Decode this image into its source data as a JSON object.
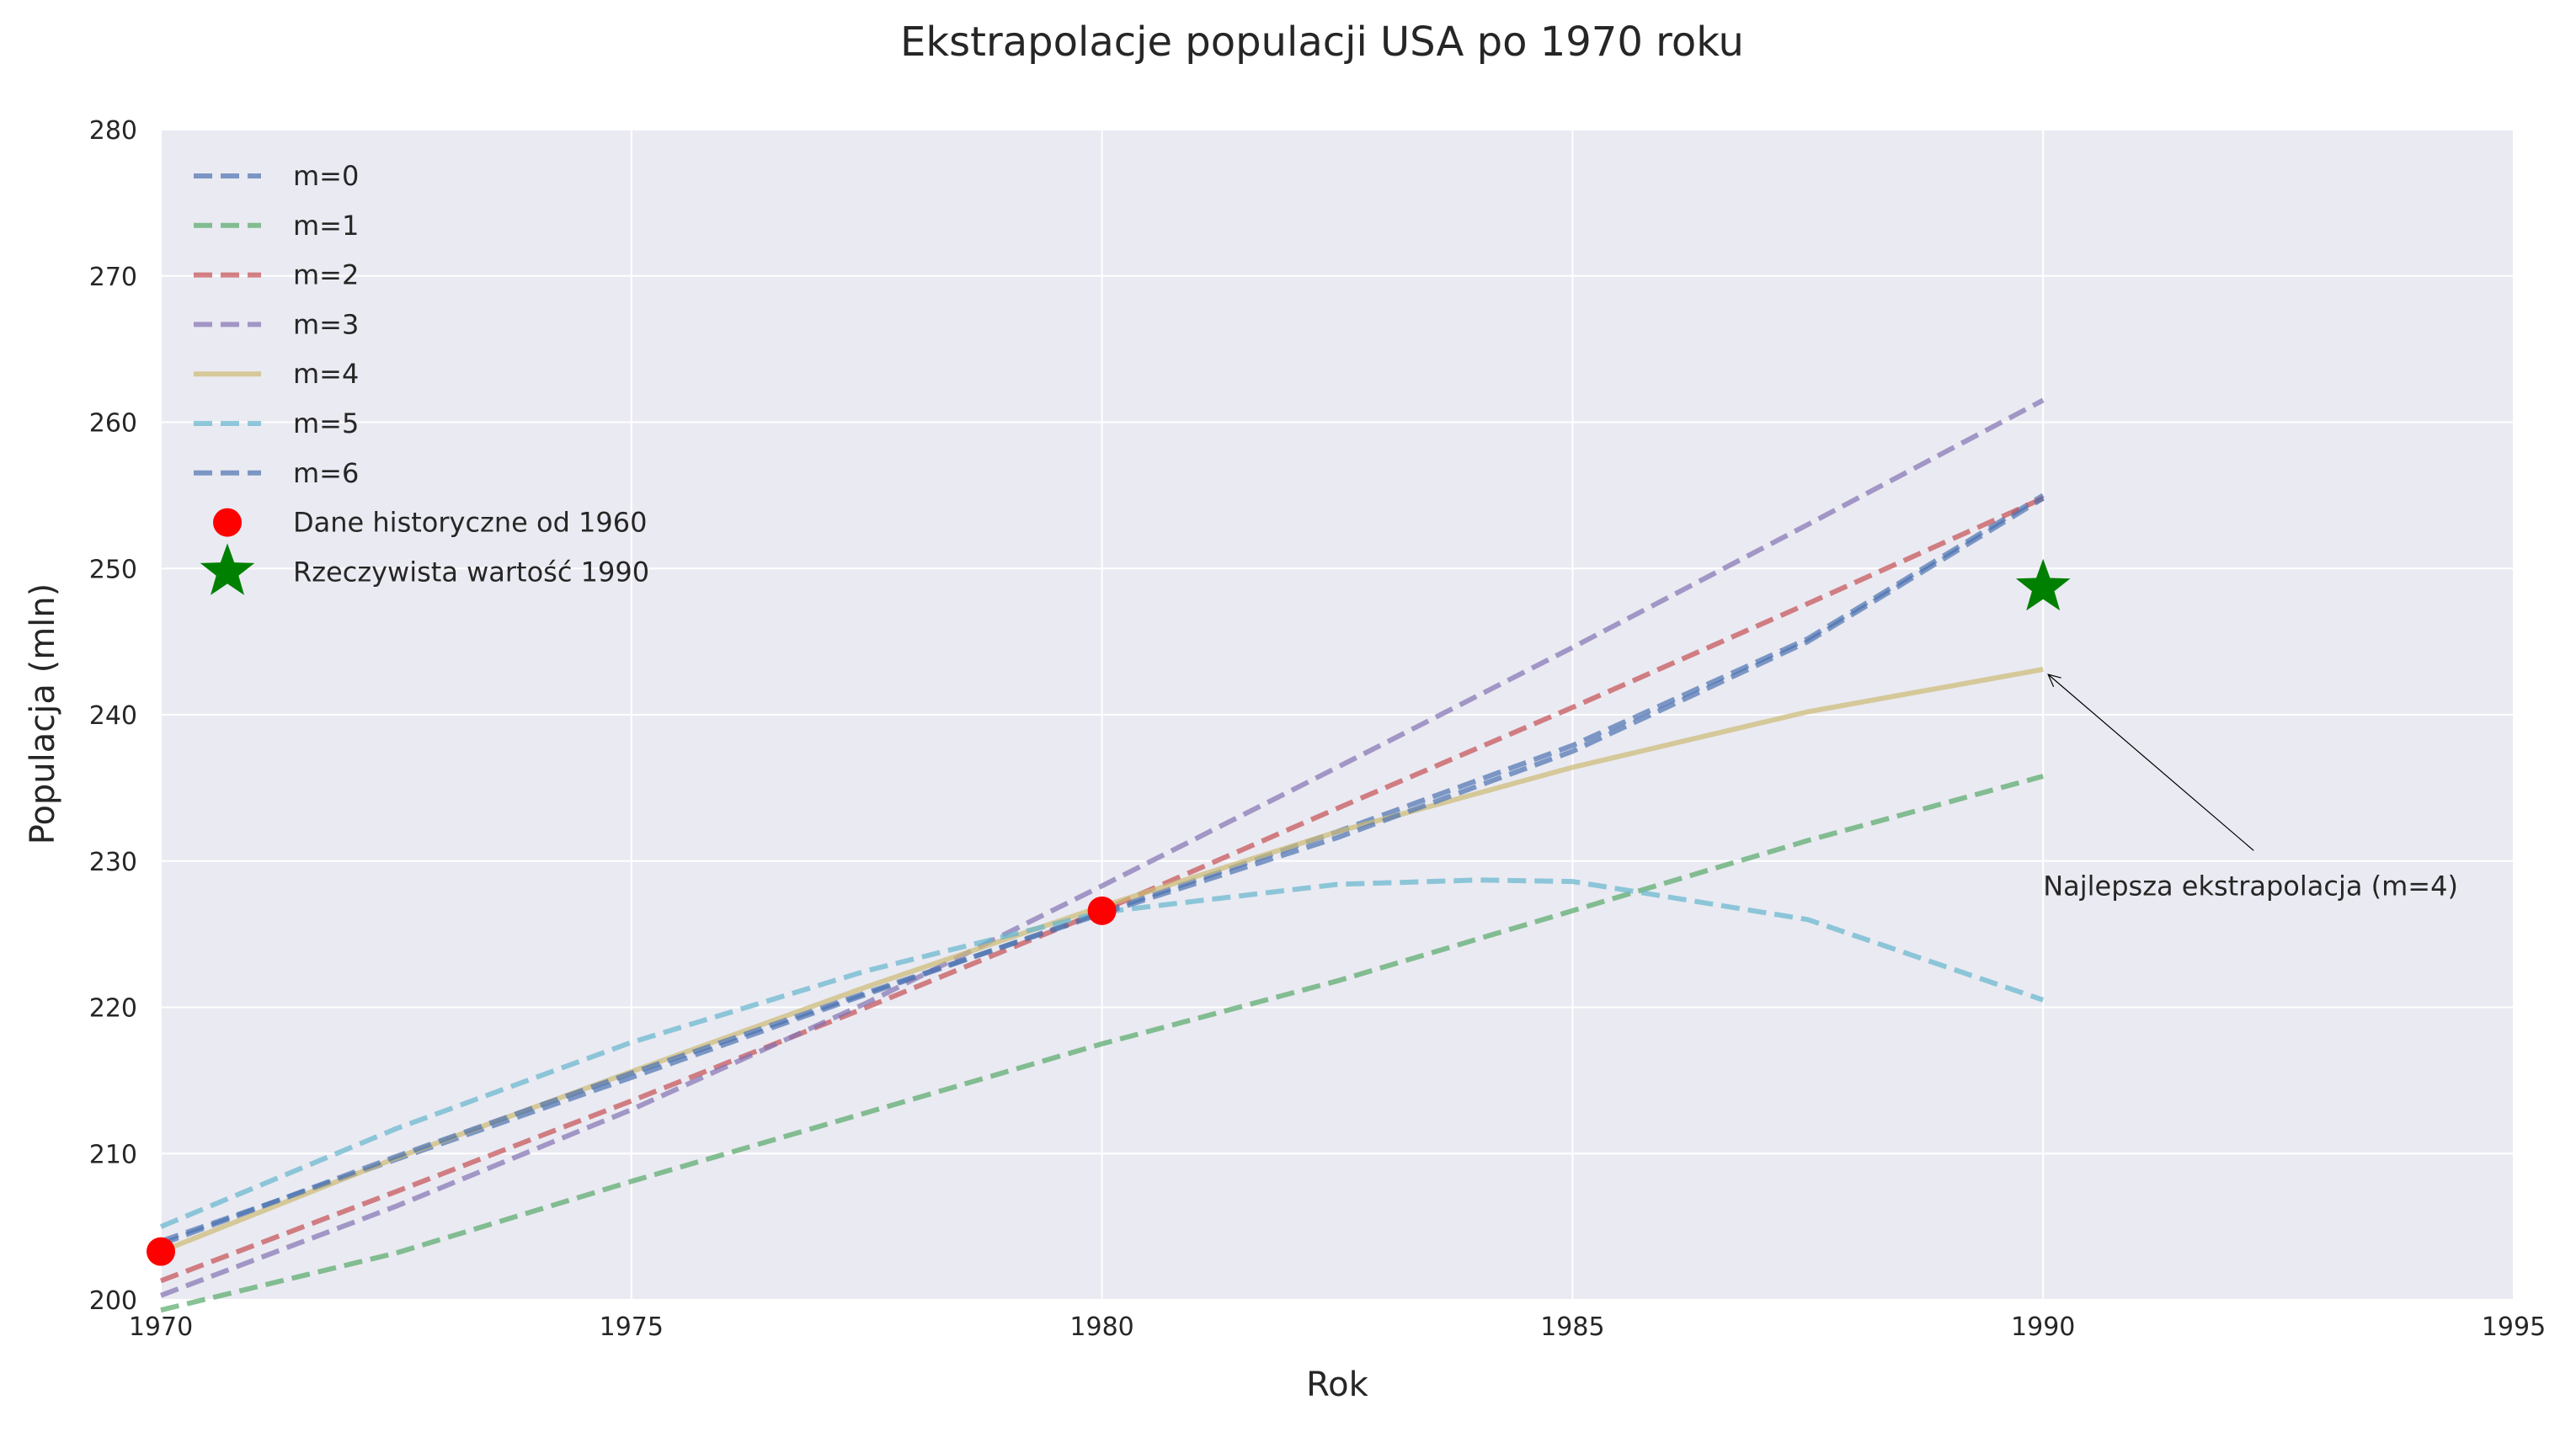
{
  "chart_data": {
    "type": "line",
    "title": "Ekstrapolacje populacji USA po 1970 roku",
    "xlabel": "Rok",
    "ylabel": "Populacja (mln)",
    "xlim": [
      1970,
      1995
    ],
    "ylim": [
      200,
      280
    ],
    "xticks": [
      "1970",
      "1975",
      "1980",
      "1985",
      "1990",
      "1995"
    ],
    "yticks": [
      "200",
      "210",
      "220",
      "230",
      "240",
      "250",
      "260",
      "270",
      "280"
    ],
    "grid": true,
    "legend_position": "top-left",
    "colors": {
      "background": "#eaeaf2",
      "grid": "#ffffff",
      "text": "#262626",
      "points": "#ff0000",
      "star": "#008000"
    },
    "series": [
      {
        "name": "m=0",
        "style": "dashed",
        "color": "#4c72b0",
        "x": [
          1970,
          1972.5,
          1975,
          1977.5,
          1980,
          1982.5,
          1985,
          1987.5,
          1990
        ],
        "y": [
          204.0,
          209.6,
          215.2,
          220.9,
          226.5,
          232.0,
          237.9,
          245.2,
          255.0
        ]
      },
      {
        "name": "m=1",
        "style": "dashed",
        "color": "#55a868",
        "x": [
          1970,
          1972.5,
          1975,
          1977.5,
          1980,
          1982.5,
          1985,
          1987.5,
          1990
        ],
        "y": [
          199.3,
          203.2,
          208.1,
          212.8,
          217.5,
          221.8,
          226.6,
          231.4,
          235.8
        ]
      },
      {
        "name": "m=2",
        "style": "dashed",
        "color": "#c44e52",
        "x": [
          1970,
          1972.5,
          1975,
          1977.5,
          1980,
          1982.5,
          1985,
          1987.5,
          1990
        ],
        "y": [
          201.3,
          207.4,
          213.6,
          220.0,
          226.6,
          233.6,
          240.5,
          247.6,
          254.8
        ]
      },
      {
        "name": "m=3",
        "style": "dashed",
        "color": "#8172b2",
        "x": [
          1970,
          1972.5,
          1975,
          1977.5,
          1980,
          1982.5,
          1985,
          1987.5,
          1990
        ],
        "y": [
          200.3,
          206.4,
          213.0,
          220.3,
          228.3,
          236.4,
          244.6,
          253.0,
          261.5
        ]
      },
      {
        "name": "m=4",
        "style": "solid",
        "color": "#ccb974",
        "x": [
          1970,
          1972.5,
          1975,
          1977.5,
          1980,
          1982.5,
          1985,
          1987.5,
          1990
        ],
        "y": [
          203.3,
          209.7,
          215.6,
          221.4,
          226.9,
          232.0,
          236.4,
          240.2,
          243.1
        ]
      },
      {
        "name": "m=5",
        "style": "dashed",
        "color": "#64b5cd",
        "x": [
          1970,
          1972.5,
          1975,
          1977.5,
          1980,
          1982.5,
          1984,
          1985,
          1987.5,
          1990
        ],
        "y": [
          205.0,
          211.7,
          217.6,
          222.5,
          226.5,
          228.4,
          228.7,
          228.6,
          226.0,
          220.5
        ]
      },
      {
        "name": "m=6",
        "style": "dashed",
        "color": "#4c72b0",
        "x": [
          1970,
          1972.5,
          1975,
          1977.5,
          1980,
          1982.5,
          1985,
          1987.5,
          1990
        ],
        "y": [
          203.8,
          209.8,
          215.5,
          221.0,
          226.4,
          231.6,
          237.5,
          245.0,
          254.8
        ]
      }
    ],
    "points": {
      "name": "Dane historyczne od 1960",
      "x": [
        1970,
        1980
      ],
      "y": [
        203.3,
        226.6
      ]
    },
    "star": {
      "name": "Rzeczywista wartość 1990",
      "x": 1990,
      "y": 248.7
    },
    "annotation": {
      "text": "Najlepsza ekstrapolacja (m=4)",
      "text_x": 1990,
      "text_y": 228.3,
      "target_x": 1990,
      "target_y": 243.1
    }
  }
}
